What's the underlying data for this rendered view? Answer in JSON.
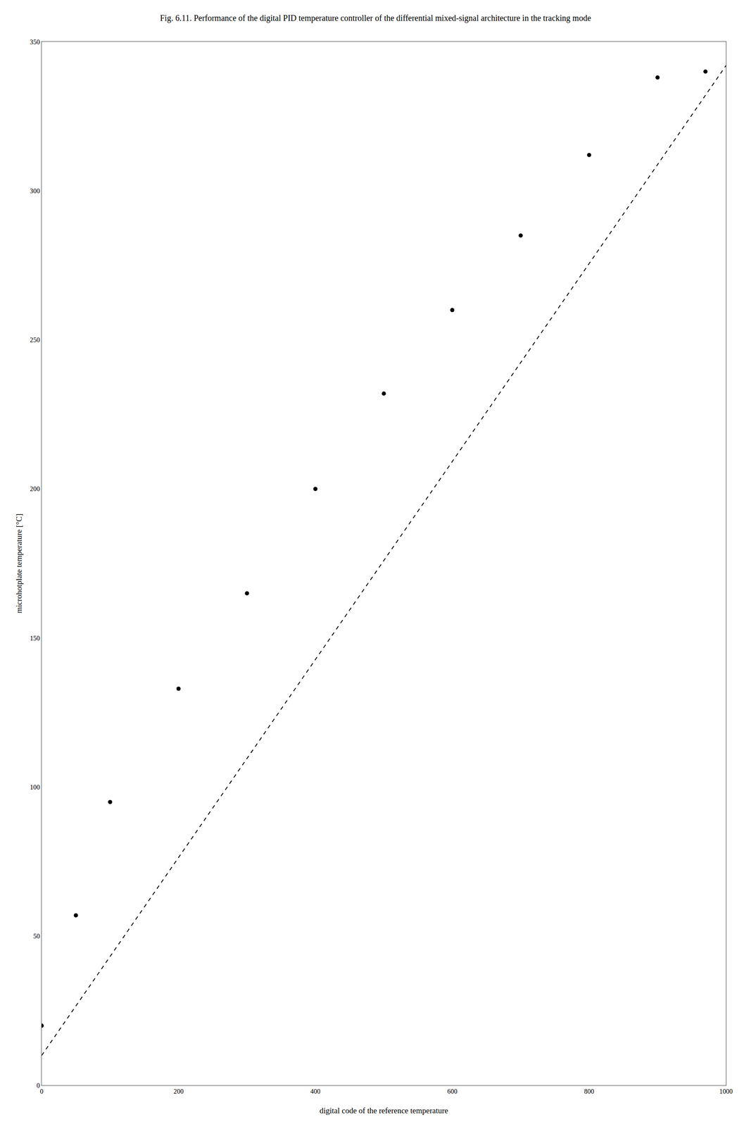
{
  "chart_data": {
    "type": "scatter",
    "title": "Fig. 6.11. Performance of the digital PID temperature controller of the differential mixed-signal architecture in the tracking mode",
    "xlabel": "digital code of the reference temperature",
    "ylabel": "microhotplate temperature [°C]",
    "series": [
      {
        "type": "line",
        "line_style": "dashed",
        "color": "#000000",
        "x": [
          0,
          1000
        ],
        "values": [
          10,
          342
        ]
      },
      {
        "type": "scatter",
        "marker": "circle",
        "color": "#000000",
        "x": [
          0,
          50,
          100,
          200,
          300,
          400,
          500,
          600,
          700,
          800,
          900,
          970
        ],
        "values": [
          20,
          57,
          95,
          133,
          165,
          200,
          232,
          260,
          285,
          312,
          338,
          340
        ]
      }
    ],
    "xlim": [
      0,
      1000
    ],
    "ylim": [
      0,
      350
    ],
    "xticks": [
      0,
      200,
      400,
      600,
      800,
      1000
    ],
    "yticks": [
      0,
      50,
      100,
      150,
      200,
      250,
      300,
      350
    ],
    "grid": false
  }
}
